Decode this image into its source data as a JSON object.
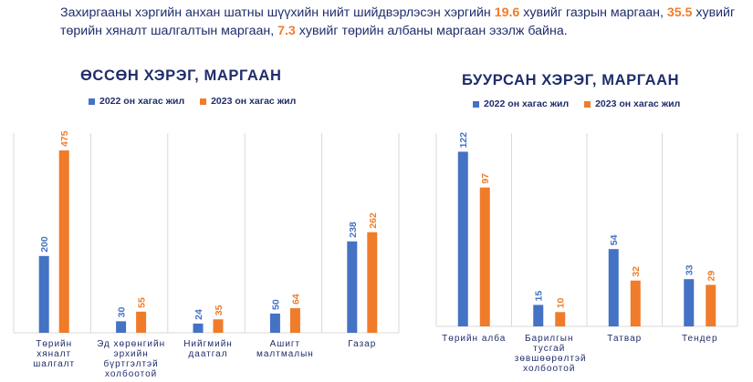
{
  "intro": {
    "part1": "Захиргааны хэргийн анхан шатны шүүхийн нийт шийдвэрлэсэн хэргийн ",
    "hl1": "19.6",
    "part2": " хувийг газрын маргаан, ",
    "hl2": "35.5",
    "part3": " хувийг төрийн хяналт шалгалтын маргаан, ",
    "hl3": "7.3",
    "part4": " хувийг төрийн албаны маргаан эзэлж байна."
  },
  "colors": {
    "series_2022": "#4472c4",
    "series_2023": "#f07c2a",
    "text": "#1f2d6b",
    "grid": "#d9d9d9"
  },
  "chart_data": [
    {
      "type": "bar",
      "title": "ӨССӨН ХЭРЭГ, МАРГААН",
      "categories": [
        "Төрийн хяналт шалгалт",
        "Эд хөрөнгийн эрхийн бүртгэлтэй холбоотой",
        "Нийгмийн даатгал",
        "Ашигт малтмалын",
        "Газар"
      ],
      "series": [
        {
          "name": "2022 он хагас жил",
          "values": [
            200,
            30,
            24,
            50,
            238
          ]
        },
        {
          "name": "2023 он хагас жил",
          "values": [
            475,
            55,
            35,
            64,
            262
          ]
        }
      ],
      "ylim": [
        0,
        520
      ],
      "legend": "top",
      "grid": false
    },
    {
      "type": "bar",
      "title": "БУУРСАН ХЭРЭГ, МАРГААН",
      "categories": [
        "Төрийн алба",
        "Барилгын тусгай зөвшөөрөлтэй холбоотой",
        "Татвар",
        "Тендер"
      ],
      "series": [
        {
          "name": "2022 он хагас жил",
          "values": [
            122,
            15,
            54,
            33
          ]
        },
        {
          "name": "2023 он хагас жил",
          "values": [
            97,
            10,
            32,
            29
          ]
        }
      ],
      "ylim": [
        0,
        135
      ],
      "legend": "top",
      "grid": false
    }
  ]
}
